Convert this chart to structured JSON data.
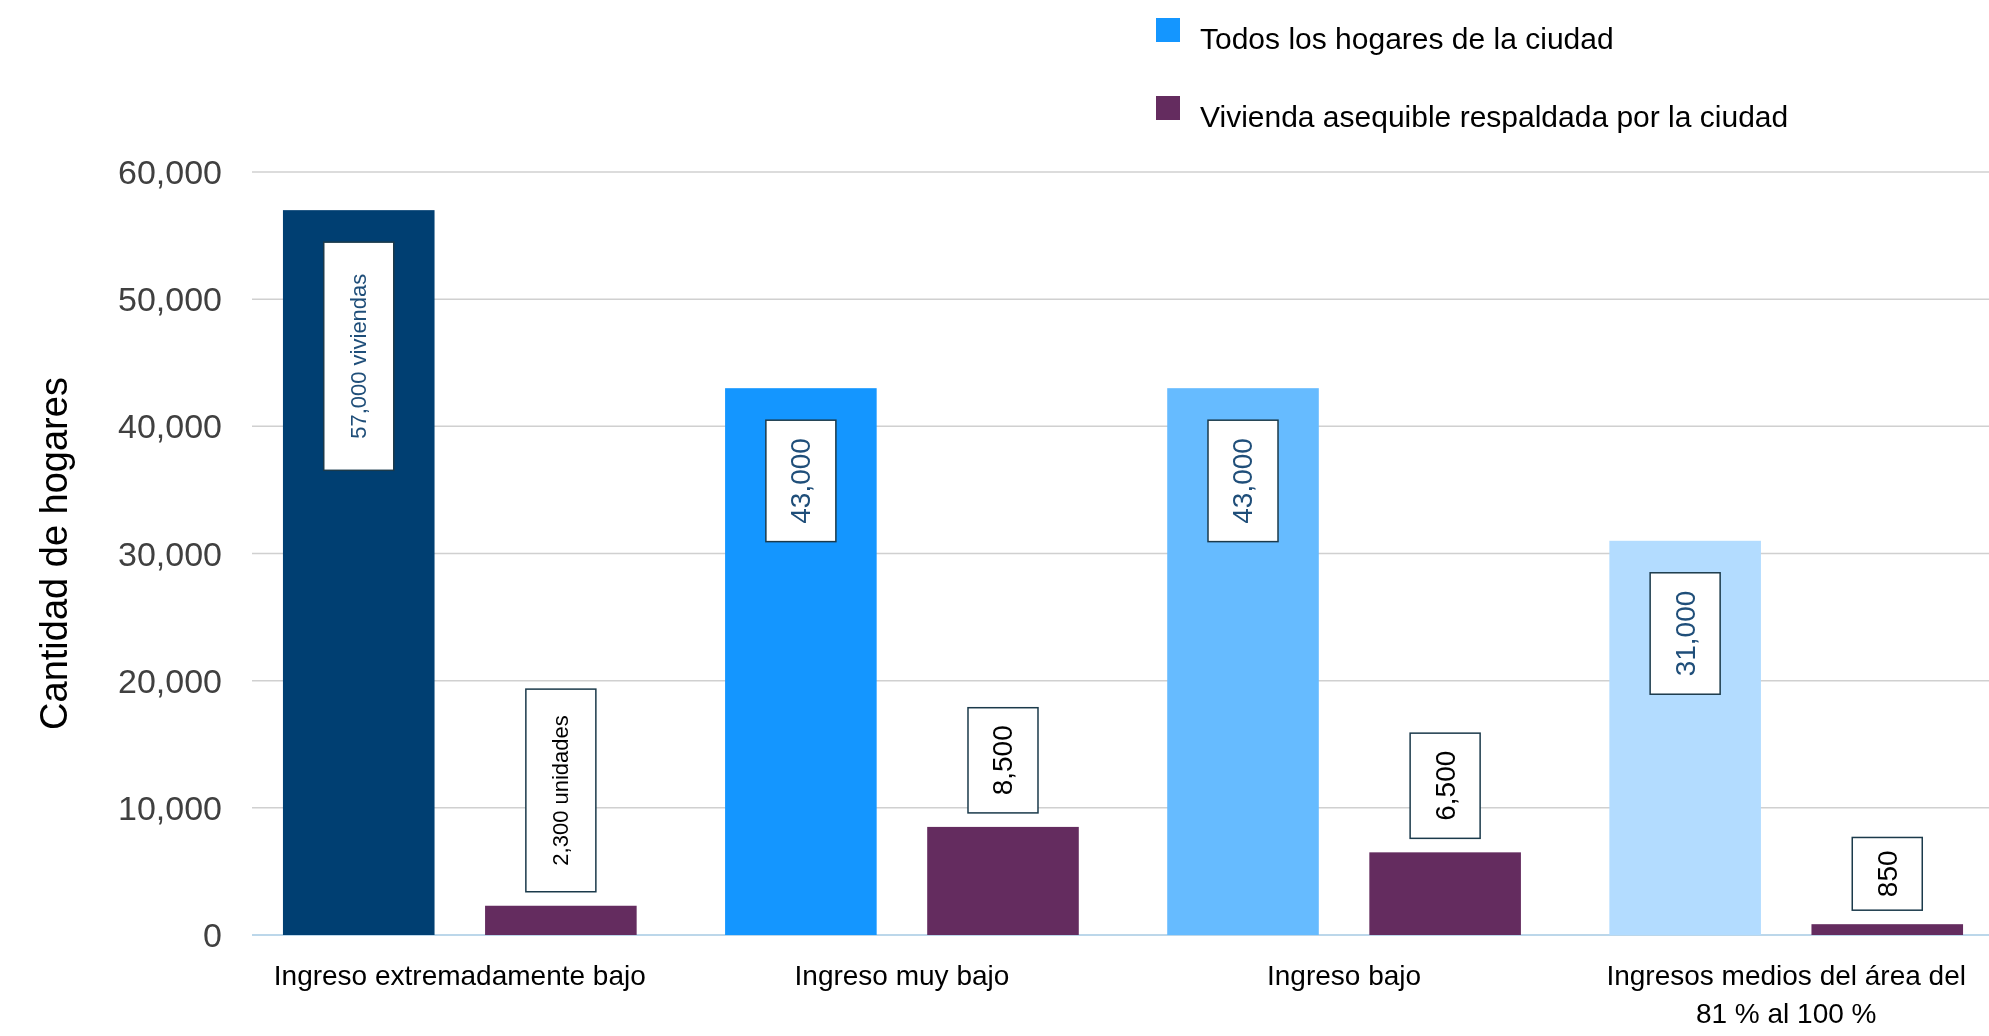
{
  "chart_data": {
    "type": "bar",
    "ylabel": "Cantidad de hogares",
    "categories": [
      "Ingreso extremadamente bajo",
      "Ingreso muy bajo",
      "Ingreso bajo",
      "Ingresos medios del área del 81 % al 100 %"
    ],
    "series": [
      {
        "name": "Todos los hogares de la ciudad",
        "color": "#1496ff",
        "colors": [
          "#003f72",
          "#1496ff",
          "#66bbff",
          "#b3dcff"
        ],
        "values": [
          57000,
          43000,
          43000,
          31000
        ],
        "value_labels": [
          "57,000 viviendas",
          "43,000",
          "43,000",
          "31,000"
        ]
      },
      {
        "name": "Vivienda asequible respaldada por la ciudad",
        "color": "#642c5f",
        "values": [
          2300,
          8500,
          6500,
          850
        ],
        "value_labels": [
          "2,300 unidades",
          "8,500",
          "6,500",
          "850"
        ]
      }
    ],
    "ylim": [
      0,
      60000
    ],
    "yticks": [
      {
        "value": 0,
        "label": "0"
      },
      {
        "value": 10000,
        "label": "10,000"
      },
      {
        "value": 20000,
        "label": "20,000"
      },
      {
        "value": 30000,
        "label": "30,000"
      },
      {
        "value": 40000,
        "label": "40,000"
      },
      {
        "value": 50000,
        "label": "50,000"
      },
      {
        "value": 60000,
        "label": "60,000"
      }
    ],
    "grid": "y",
    "legend": "top right"
  }
}
